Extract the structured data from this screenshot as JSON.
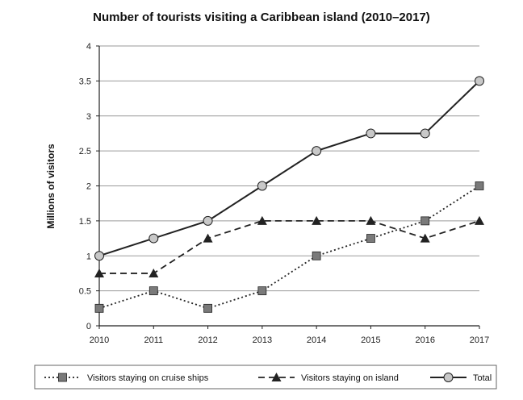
{
  "chart_data": {
    "type": "line",
    "title": "Number of tourists visiting a Caribbean island (2010–2017)",
    "xlabel": "",
    "ylabel": "Millions of visitors",
    "x": [
      "2010",
      "2011",
      "2012",
      "2013",
      "2014",
      "2015",
      "2016",
      "2017"
    ],
    "ylim": [
      0,
      4
    ],
    "yticks": [
      "0",
      "0.5",
      "1",
      "1.5",
      "2",
      "2.5",
      "3",
      "3.5",
      "4"
    ],
    "grid": true,
    "legend_position": "bottom",
    "series": [
      {
        "name": "Visitors staying on cruise ships",
        "style": "dotted",
        "marker": "square",
        "values": [
          0.25,
          0.5,
          0.25,
          0.5,
          1,
          1.25,
          1.5,
          2
        ]
      },
      {
        "name": "Visitors staying on island",
        "style": "dashed",
        "marker": "triangle",
        "values": [
          0.75,
          0.75,
          1.25,
          1.5,
          1.5,
          1.5,
          1.25,
          1.5
        ]
      },
      {
        "name": "Total",
        "style": "solid",
        "marker": "circle",
        "values": [
          1,
          1.25,
          1.5,
          2,
          2.5,
          2.75,
          2.75,
          3.5
        ]
      }
    ]
  },
  "colors": {
    "line": "#222222",
    "grid": "#9a9a9a",
    "square_marker": "#7a7a7a",
    "circle_marker": "#c8c8c8"
  }
}
